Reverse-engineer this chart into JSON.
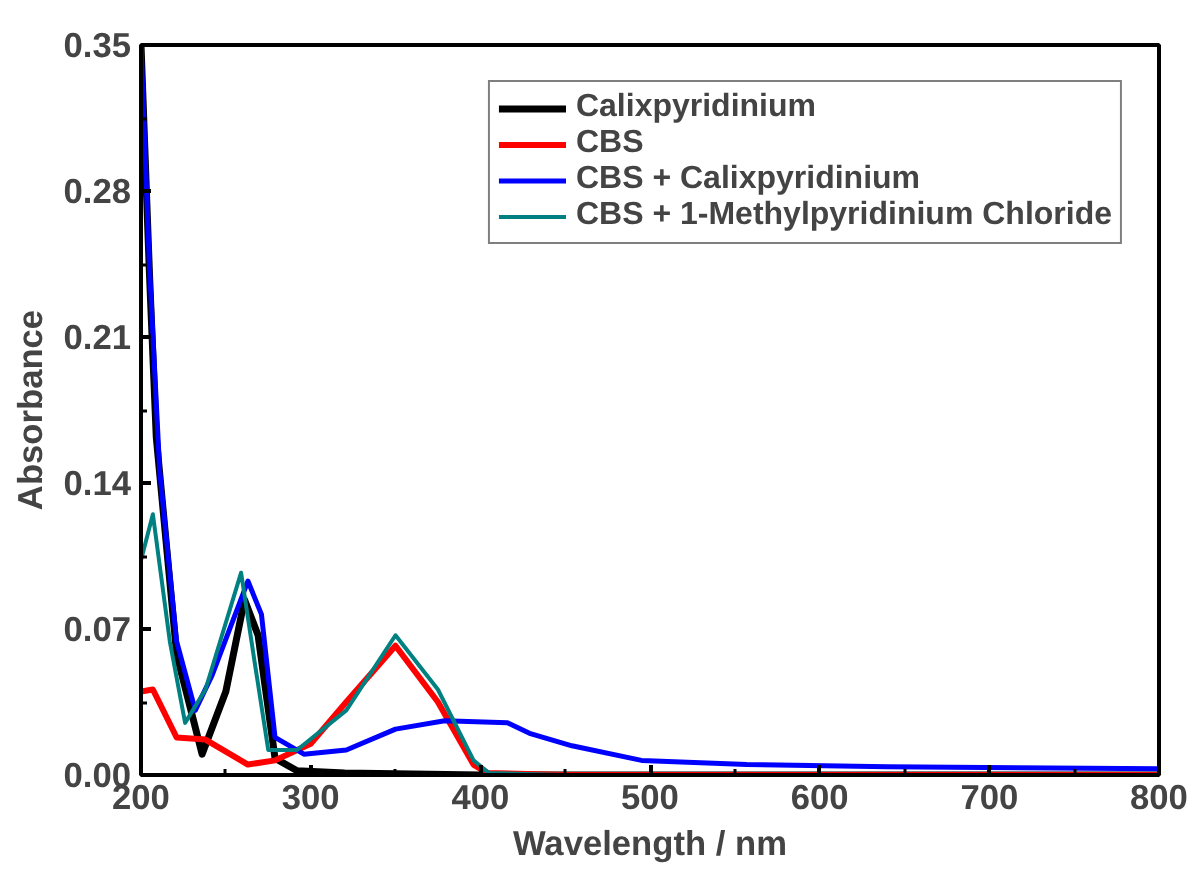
{
  "chart_data": {
    "type": "line",
    "xlabel": "Wavelength / nm",
    "ylabel": "Absorbance",
    "xlim": [
      200,
      800
    ],
    "ylim": [
      0,
      0.35
    ],
    "xticks": [
      200,
      300,
      400,
      500,
      600,
      700,
      800
    ],
    "yticks": [
      {
        "value": 0,
        "label": "0.00"
      },
      {
        "value": 0.07,
        "label": "0.07"
      },
      {
        "value": 0.14,
        "label": "0.14"
      },
      {
        "value": 0.21,
        "label": "0.21"
      },
      {
        "value": 0.28,
        "label": "0.28"
      },
      {
        "value": 0.35,
        "label": "0.35"
      }
    ],
    "grid": false,
    "legend": "top right",
    "line_style": "solid",
    "marker": "none",
    "series": [
      {
        "name": "Calixpyridinium",
        "color": "#000000",
        "x": [
          200,
          205,
          209,
          221,
          236,
          250,
          261,
          269,
          279,
          292,
          320,
          400,
          450,
          800
        ],
        "values": [
          0.35,
          0.24,
          0.162,
          0.058,
          0.01,
          0.04,
          0.084,
          0.067,
          0.008,
          0.002,
          0.001,
          0.0,
          0.0,
          0.0
        ]
      },
      {
        "name": "CBS",
        "color": "#ff0000",
        "x": [
          200,
          207,
          221,
          238,
          263,
          279,
          300,
          321,
          350,
          375,
          396,
          404,
          450,
          800
        ],
        "values": [
          0.04,
          0.041,
          0.018,
          0.017,
          0.005,
          0.007,
          0.015,
          0.035,
          0.062,
          0.035,
          0.005,
          0.001,
          0.0,
          0.0
        ]
      },
      {
        "name": "CBS + Calixpyridinium",
        "color": "#0000ff",
        "x": [
          200,
          205,
          211,
          221,
          232,
          242,
          263,
          271,
          279,
          296,
          321,
          350,
          379,
          416,
          429,
          454,
          495,
          557,
          640,
          800
        ],
        "values": [
          0.35,
          0.244,
          0.146,
          0.064,
          0.031,
          0.048,
          0.093,
          0.077,
          0.018,
          0.01,
          0.012,
          0.022,
          0.026,
          0.025,
          0.02,
          0.014,
          0.007,
          0.005,
          0.004,
          0.003
        ]
      },
      {
        "name": "CBS + 1-Methylpyridinium Chloride",
        "color": "#008080",
        "x": [
          200,
          207,
          217,
          226,
          238,
          259,
          267,
          275,
          292,
          321,
          350,
          375,
          396,
          405,
          450,
          800
        ],
        "values": [
          0.103,
          0.125,
          0.064,
          0.025,
          0.041,
          0.097,
          0.054,
          0.012,
          0.012,
          0.031,
          0.067,
          0.041,
          0.007,
          0.001,
          0.0,
          0.0
        ]
      }
    ]
  }
}
